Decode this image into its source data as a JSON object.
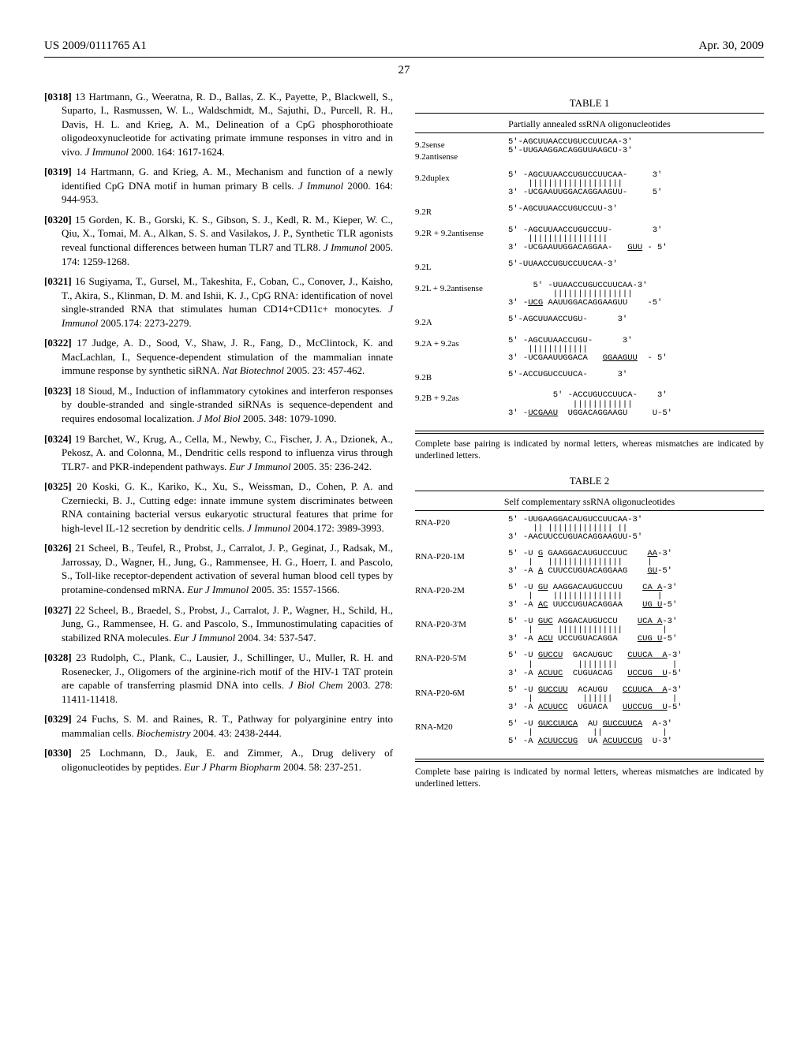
{
  "header": {
    "left": "US 2009/0111765 A1",
    "right": "Apr. 30, 2009"
  },
  "page_number": "27",
  "references": [
    {
      "num": "[0318]",
      "body": "13 Hartmann, G., Weeratna, R. D., Ballas, Z. K., Payette, P., Blackwell, S., Suparto, I., Rasmussen, W. L., Waldschmidt, M., Sajuthi, D., Purcell, R. H., Davis, H. L. and Krieg, A. M., Delineation of a CpG phosphorothioate oligodeoxynucleotide for activating primate immune responses in vitro and in vivo. ",
      "journal": "J Immunol ",
      "tail": "2000. 164: 1617-1624."
    },
    {
      "num": "[0319]",
      "body": "14 Hartmann, G. and Krieg, A. M., Mechanism and function of a newly identified CpG DNA motif in human primary B cells. ",
      "journal": "J Immunol ",
      "tail": "2000. 164: 944-953."
    },
    {
      "num": "[0320]",
      "body": "15 Gorden, K. B., Gorski, K. S., Gibson, S. J., Kedl, R. M., Kieper, W. C., Qiu, X., Tomai, M. A., Alkan, S. S. and Vasilakos, J. P., Synthetic TLR agonists reveal functional differences between human TLR7 and TLR8. ",
      "journal": "J Immunol ",
      "tail": "2005. 174: 1259-1268."
    },
    {
      "num": "[0321]",
      "body": "16 Sugiyama, T., Gursel, M., Takeshita, F., Coban, C., Conover, J., Kaisho, T., Akira, S., Klinman, D. M. and Ishii, K. J., CpG RNA: identification of novel single-stranded RNA that stimulates human CD14+CD11c+ monocytes. ",
      "journal": "J Immunol ",
      "tail": "2005.174: 2273-2279."
    },
    {
      "num": "[0322]",
      "body": "17 Judge, A. D., Sood, V., Shaw, J. R., Fang, D., McClintock, K. and MacLachlan, I., Sequence-dependent stimulation of the mammalian innate immune response by synthetic siRNA. ",
      "journal": "Nat Biotechnol ",
      "tail": "2005. 23: 457-462."
    },
    {
      "num": "[0323]",
      "body": "18 Sioud, M., Induction of inflammatory cytokines and interferon responses by double-stranded and single-stranded siRNAs is sequence-dependent and requires endosomal localization. ",
      "journal": "J Mol Biol ",
      "tail": "2005. 348: 1079-1090."
    },
    {
      "num": "[0324]",
      "body": "19 Barchet, W., Krug, A., Cella, M., Newby, C., Fischer, J. A., Dzionek, A., Pekosz, A. and Colonna, M., Dendritic cells respond to influenza virus through TLR7- and PKR-independent pathways. ",
      "journal": "Eur J Immunol ",
      "tail": "2005. 35: 236-242."
    },
    {
      "num": "[0325]",
      "body": "20 Koski, G. K., Kariko, K., Xu, S., Weissman, D., Cohen, P. A. and Czerniecki, B. J., Cutting edge: innate immune system discriminates between RNA containing bacterial versus eukaryotic structural features that prime for high-level IL-12 secretion by dendritic cells. ",
      "journal": "J Immunol ",
      "tail": "2004.172: 3989-3993."
    },
    {
      "num": "[0326]",
      "body": "21 Scheel, B., Teufel, R., Probst, J., Carralot, J. P., Geginat, J., Radsak, M., Jarrossay, D., Wagner, H., Jung, G., Rammensee, H. G., Hoerr, I. and Pascolo, S., Toll-like receptor-dependent activation of several human blood cell types by protamine-condensed mRNA. ",
      "journal": "Eur J Immunol ",
      "tail": "2005. 35: 1557-1566."
    },
    {
      "num": "[0327]",
      "body": "22 Scheel, B., Braedel, S., Probst, J., Carralot, J. P., Wagner, H., Schild, H., Jung, G., Rammensee, H. G. and Pascolo, S., Immunostimulating capacities of stabilized RNA molecules. ",
      "journal": "Eur J Immunol ",
      "tail": "2004. 34: 537-547."
    },
    {
      "num": "[0328]",
      "body": "23 Rudolph, C., Plank, C., Lausier, J., Schillinger, U., Muller, R. H. and Rosenecker, J., Oligomers of the arginine-rich motif of the HIV-1 TAT protein are capable of transferring plasmid DNA into cells. ",
      "journal": "J Biol Chem ",
      "tail": "2003. 278: 11411-11418."
    },
    {
      "num": "[0329]",
      "body": "24 Fuchs, S. M. and Raines, R. T., Pathway for polyarginine entry into mammalian cells. ",
      "journal": "Biochemistry ",
      "tail": "2004. 43: 2438-2444."
    },
    {
      "num": "[0330]",
      "body": "25 Lochmann, D., Jauk, E. and Zimmer, A., Drug delivery of oligonucleotides by peptides. ",
      "journal": "Eur J Pharm Biopharm ",
      "tail": "2004. 58: 237-251."
    }
  ],
  "table1": {
    "title": "TABLE 1",
    "caption": "Partially annealed ssRNA oligonucleotides",
    "footnote": "Complete base pairing is indicated by normal letters, whereas mismatches are indicated by underlined letters.",
    "rows": [
      {
        "label": "9.2sense\n9.2antisense",
        "seq": "5'-AGCUUAACCUGUCCUUCAA-3'\n5'-UUGAAGGACAGGUUAAGCU-3'"
      },
      {
        "label": "9.2duplex",
        "seq": "5' -AGCUUAACCUGUCCUUCAA-     3'\n    |||||||||||||||||||\n3' -UCGAAUUGGACAGGAAGUU-     5'"
      },
      {
        "label": "9.2R",
        "seq": "5'-AGCUUAACCUGUCCUU-3'"
      },
      {
        "label": "9.2R + 9.2antisense",
        "seq": "5' -AGCUUAACCUGUCCUU-        3'\n    ||||||||||||||||\n3' -UCGAAUUGGACAGGAA-   <u>GUU</u> - 5'"
      },
      {
        "label": "9.2L",
        "seq": "5'-UUAACCUGUCCUUCAA-3'"
      },
      {
        "label": "9.2L + 9.2antisense",
        "seq": "     5' -UUAACCUGUCCUUCAA-3'\n         ||||||||||||||||\n3' -<u>UCG</u> AAUUGGACAGGAAGUU    -5'"
      },
      {
        "label": "9.2A",
        "seq": "5'-AGCUUAACCUGU-      3'"
      },
      {
        "label": "9.2A + 9.2as",
        "seq": "5' -AGCUUAACCUGU-      3'\n    ||||||||||||\n3' -UCGAAUUGGACA   <u>GGAAGUU</u>  - 5'"
      },
      {
        "label": "9.2B",
        "seq": "5'-ACCUGUCCUUCA-      3'"
      },
      {
        "label": "9.2B + 9.2as",
        "seq": "         5' -ACCUGUCCUUCA-    3'\n             ||||||||||||\n3' -<u>UCGAAU</u>  UGGACAGGAAGU     U-5'"
      }
    ]
  },
  "table2": {
    "title": "TABLE 2",
    "caption": "Self complementary ssRNA oligonucleotides",
    "footnote": "Complete base pairing is indicated by normal letters, whereas mismatches are indicated by underlined letters.",
    "rows": [
      {
        "label": "RNA-P20",
        "seq": "5' -UUGAAGGACAUGUCCUUCAA-3'\n     || ||||||||||||| ||\n3' -AACUUCCUGUACAGGAAGUU-5'"
      },
      {
        "label": "RNA-P20-1M",
        "seq": "5' -U <u>G</u> GAAGGACAUGUCCUUC    <u>AA</u>-3'\n    |   |||||||||||||||     |\n3' -A <u>A</u> CUUCCUGUACAGGAAG    <u>GU</u>-5'"
      },
      {
        "label": "RNA-P20-2M",
        "seq": "5' -U <u>GU</u> AAGGACAUGUCCUU    <u>CA A</u>-3'\n    |    ||||||||||||||       |\n3' -A <u>AC</u> UUCCUGUACAGGAA    <u>UG U</u>-5'"
      },
      {
        "label": "RNA-P20-3'M",
        "seq": "5' -U <u>GUC</u> AGGACAUGUCCU    <u>UCA A</u>-3'\n    |     |||||||||||||        |\n3' -A <u>ACU</u> UCCUGUACAGGA    <u>CUG U</u>-5'"
      },
      {
        "label": "RNA-P20-5'M",
        "seq": "5' -U <u>GUCCU</u>  GACAUGUC   <u>CUUCA  A</u>-3'\n    |         ||||||||           |\n3' -A <u>ACUUC</u>  CUGUACAG   <u>UCCUG  U</u>-5'"
      },
      {
        "label": "RNA-P20-6M",
        "seq": "5' -U <u>GUCCUU</u>  ACAUGU   <u>CCUUCA  A</u>-3'\n    |          ||||||            |\n3' -A <u>ACUUCC</u>  UGUACA   <u>UUCCUG  U</u>-5'"
      },
      {
        "label": "RNA-M20",
        "seq": "5' -U <u>GUCCUUCA</u>  AU <u>GUCCUUCA</u>  A-3'\n    |            ||            |\n5' -A <u>ACUUCCUG</u>  UA <u>ACUUCCUG</u>  U-3'"
      }
    ]
  }
}
